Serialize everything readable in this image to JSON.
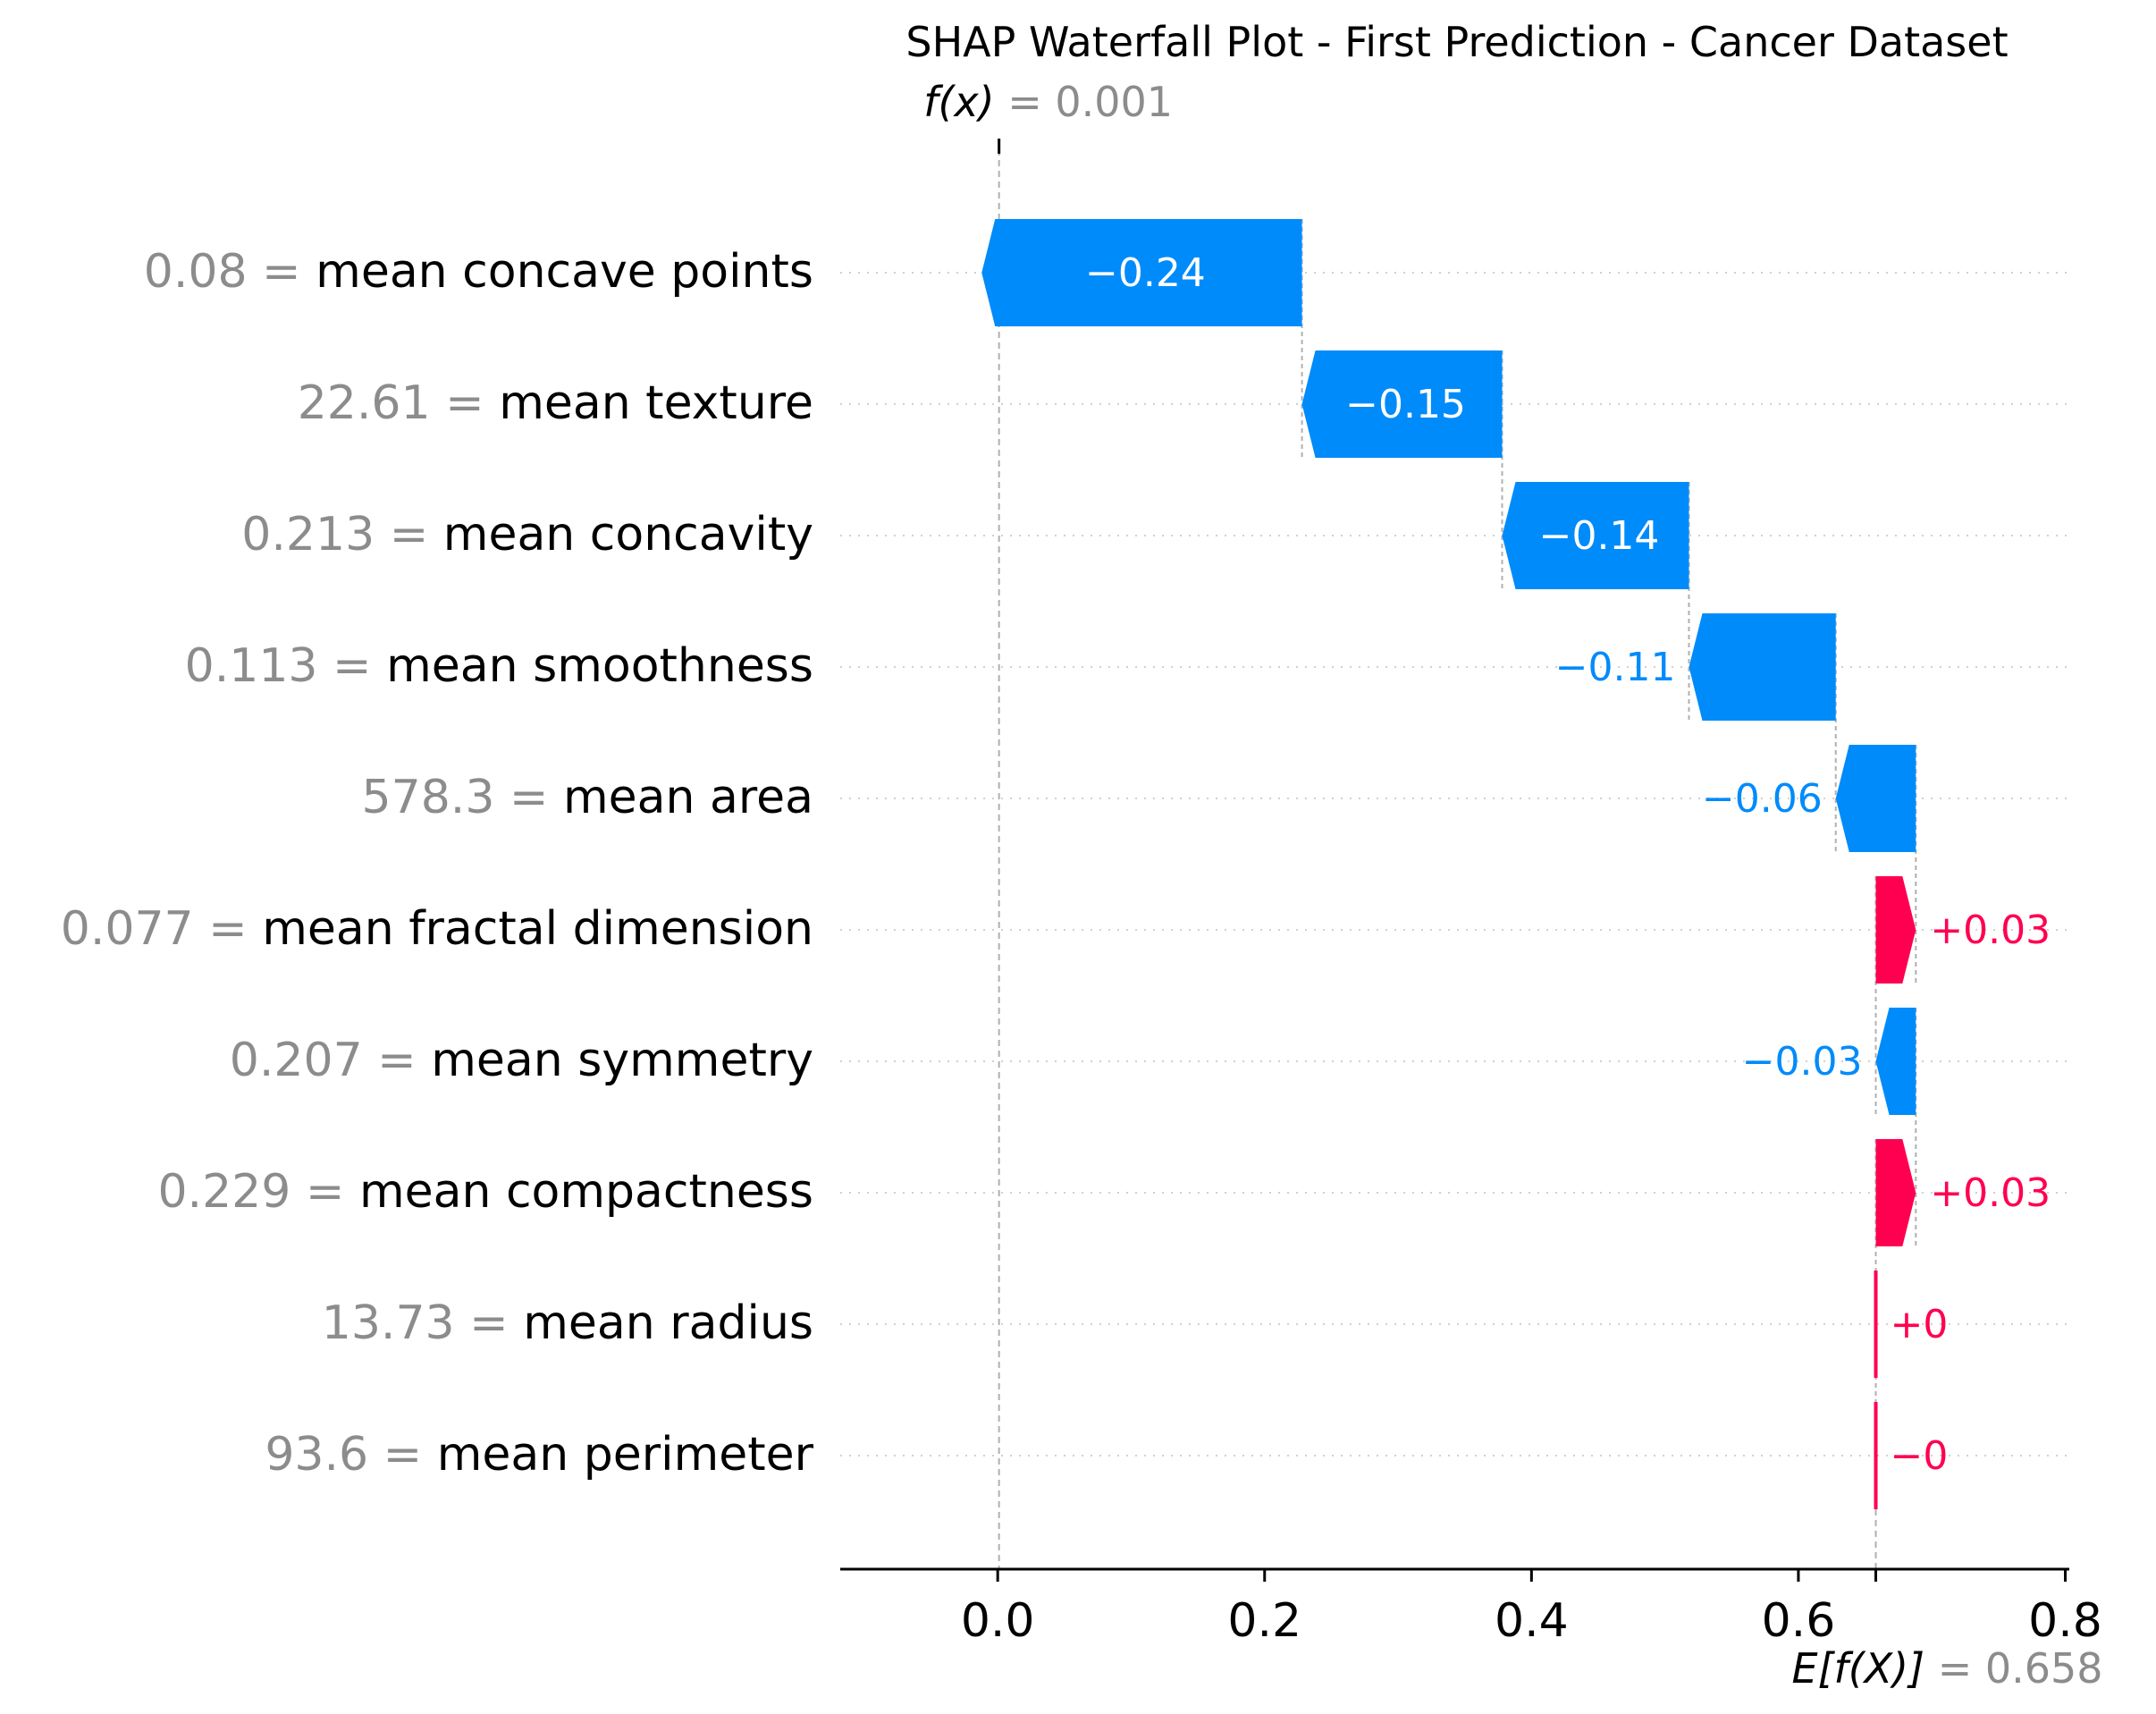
{
  "chart_data": {
    "type": "waterfall",
    "title": "SHAP Waterfall Plot - First Prediction - Cancer Dataset",
    "fx": {
      "label": "f(x)",
      "equals": "=",
      "value": 0.001,
      "value_text": "0.001"
    },
    "efx": {
      "label": "E[f(X)]",
      "equals": "=",
      "value": 0.658,
      "value_text": "0.658"
    },
    "xlim": [
      -0.118,
      0.803
    ],
    "xticks": [
      {
        "value": 0.0,
        "label": "0.0"
      },
      {
        "value": 0.2,
        "label": "0.2"
      },
      {
        "value": 0.4,
        "label": "0.4"
      },
      {
        "value": 0.6,
        "label": "0.6"
      },
      {
        "value": 0.8,
        "label": "0.8"
      }
    ],
    "features": [
      {
        "value_text": "0.08",
        "name": "mean concave points",
        "shap": -0.24,
        "label": "−0.24"
      },
      {
        "value_text": "22.61",
        "name": "mean texture",
        "shap": -0.15,
        "label": "−0.15"
      },
      {
        "value_text": "0.213",
        "name": "mean concavity",
        "shap": -0.14,
        "label": "−0.14"
      },
      {
        "value_text": "0.113",
        "name": "mean smoothness",
        "shap": -0.11,
        "label": "−0.11"
      },
      {
        "value_text": "578.3",
        "name": "mean area",
        "shap": -0.06,
        "label": "−0.06"
      },
      {
        "value_text": "0.077",
        "name": "mean fractal dimension",
        "shap": 0.03,
        "label": "+0.03"
      },
      {
        "value_text": "0.207",
        "name": "mean symmetry",
        "shap": -0.03,
        "label": "−0.03"
      },
      {
        "value_text": "0.229",
        "name": "mean compactness",
        "shap": 0.03,
        "label": "+0.03"
      },
      {
        "value_text": "13.73",
        "name": "mean radius",
        "shap": 0.0,
        "label": "+0"
      },
      {
        "value_text": "93.6",
        "name": "mean perimeter",
        "shap": -0.0,
        "label": "−0"
      }
    ],
    "colors": {
      "positive": "#ff0051",
      "negative": "#008bfb",
      "muted": "#8c8c8c"
    }
  }
}
